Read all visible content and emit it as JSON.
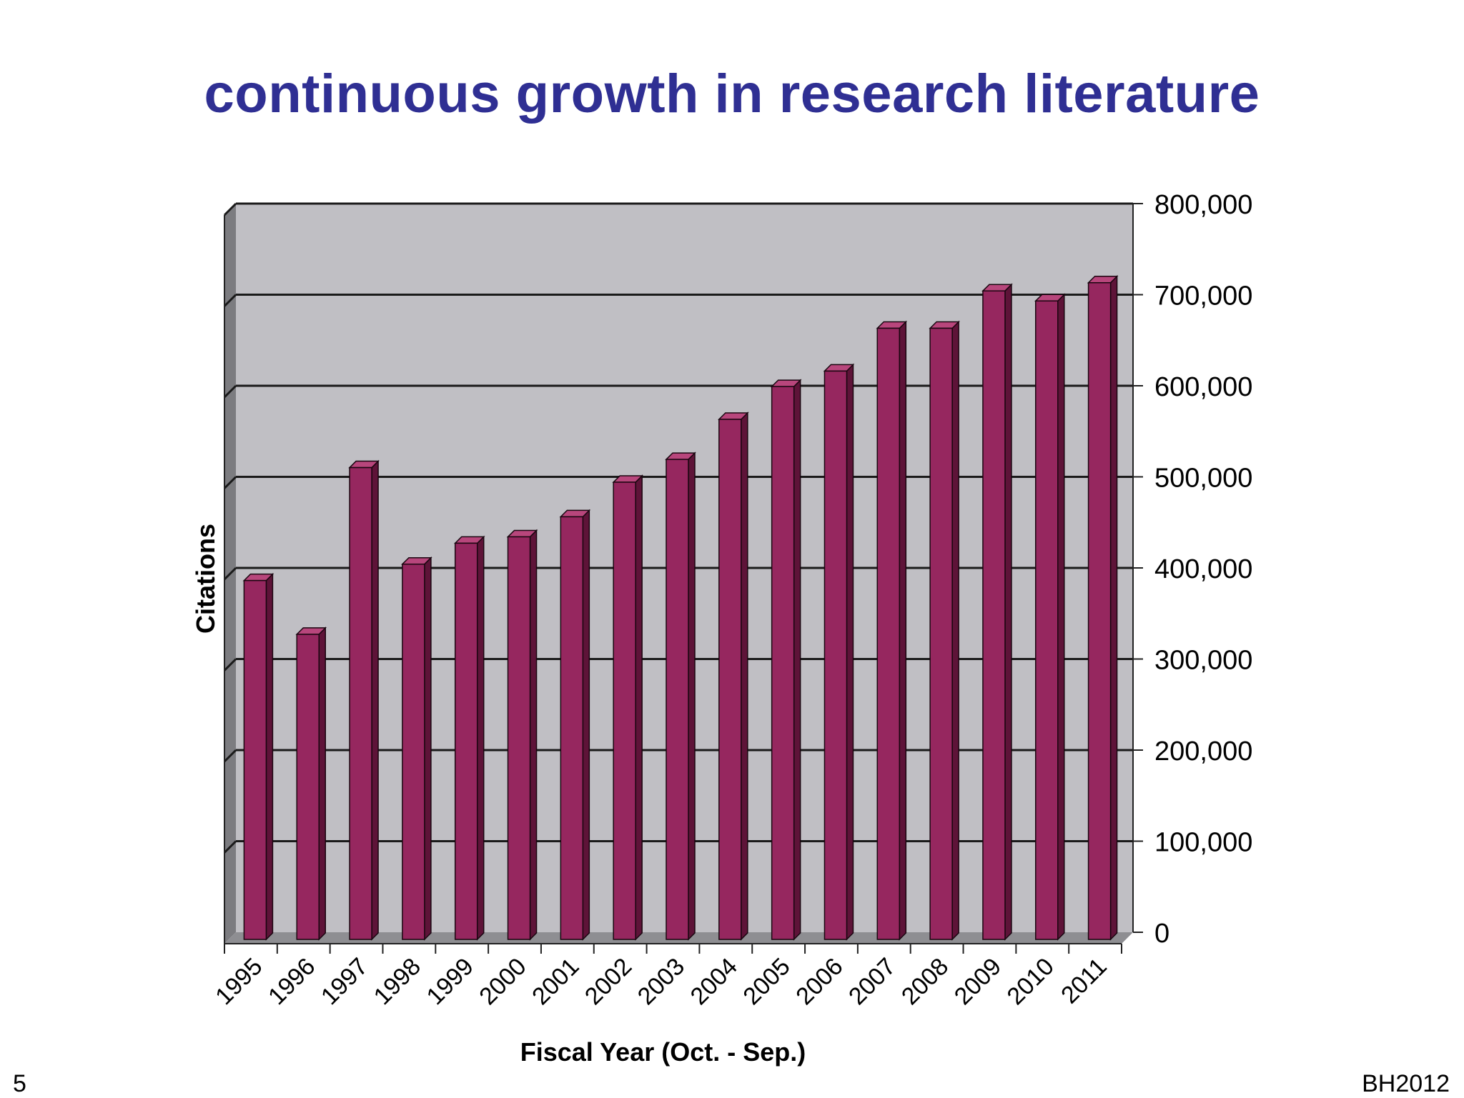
{
  "slide": {
    "title": "continuous growth in research literature",
    "number": "5",
    "footer": "BH2012"
  },
  "colors": {
    "title": "#2f2f93",
    "bar_front": "#96275f",
    "bar_side": "#5e1338",
    "bar_top": "#b8467c",
    "plot_back": "#c0bfc4",
    "floor": "#8e8e92",
    "left_wall": "#7c7c80",
    "axis_text": "#000000"
  },
  "chart_data": {
    "type": "bar",
    "title": "",
    "xlabel": "Fiscal Year (Oct. - Sep.)",
    "ylabel": "Citations",
    "categories": [
      "1995",
      "1996",
      "1997",
      "1998",
      "1999",
      "2000",
      "2001",
      "2002",
      "2003",
      "2004",
      "2005",
      "2006",
      "2007",
      "2008",
      "2009",
      "2010",
      "2011"
    ],
    "values": [
      394000,
      335000,
      518000,
      412000,
      435000,
      442000,
      464000,
      502000,
      527000,
      571000,
      607000,
      624000,
      671000,
      671000,
      712000,
      701000,
      721000
    ],
    "ylim": [
      0,
      800000
    ],
    "yticks": [
      0,
      100000,
      200000,
      300000,
      400000,
      500000,
      600000,
      700000,
      800000
    ],
    "ytick_labels": [
      "0",
      "100,000",
      "200,000",
      "300,000",
      "400,000",
      "500,000",
      "600,000",
      "700,000",
      "800,000"
    ],
    "y_axis_side": "right",
    "grid": true,
    "legend": "none",
    "style": "3d"
  }
}
